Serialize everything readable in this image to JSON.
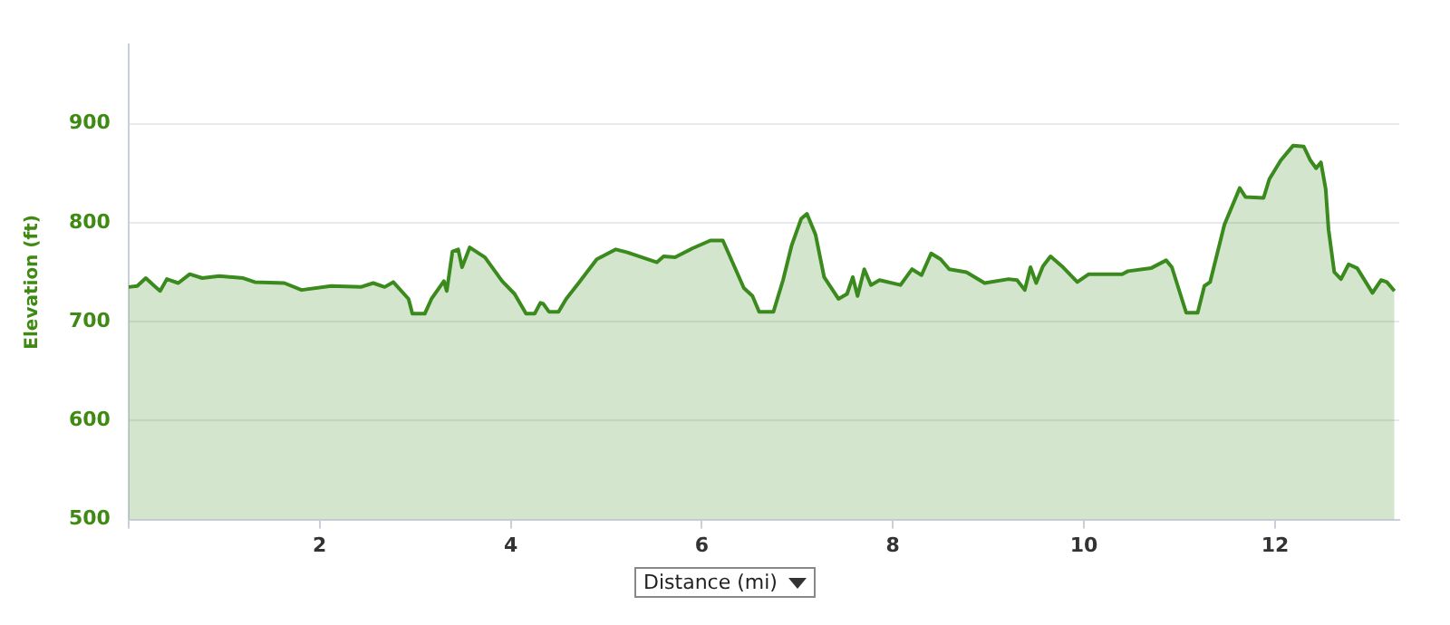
{
  "chart_data": {
    "type": "area",
    "xlabel": "Distance (mi)",
    "ylabel": "Elevation (ft)",
    "x": [
      0,
      0.09,
      0.18,
      0.27,
      0.33,
      0.4,
      0.52,
      0.64,
      0.77,
      0.95,
      1.2,
      1.32,
      1.63,
      1.81,
      2.12,
      2.43,
      2.56,
      2.68,
      2.77,
      2.93,
      2.97,
      3.1,
      3.17,
      3.3,
      3.33,
      3.39,
      3.45,
      3.49,
      3.57,
      3.73,
      3.91,
      4.04,
      4.16,
      4.25,
      4.31,
      4.34,
      4.4,
      4.5,
      4.58,
      4.71,
      4.9,
      5.1,
      5.22,
      5.53,
      5.6,
      5.72,
      5.9,
      6.09,
      6.22,
      6.28,
      6.44,
      6.53,
      6.6,
      6.75,
      6.85,
      6.94,
      7.04,
      7.1,
      7.19,
      7.28,
      7.43,
      7.52,
      7.58,
      7.63,
      7.7,
      7.77,
      7.86,
      8.08,
      8.2,
      8.3,
      8.4,
      8.5,
      8.59,
      8.77,
      8.96,
      9.21,
      9.3,
      9.38,
      9.44,
      9.5,
      9.57,
      9.65,
      9.77,
      9.93,
      10.05,
      10.4,
      10.46,
      10.7,
      10.86,
      10.92,
      11.07,
      11.19,
      11.26,
      11.32,
      11.47,
      11.63,
      11.69,
      11.88,
      11.94,
      12.06,
      12.19,
      12.3,
      12.37,
      12.43,
      12.48,
      12.53,
      12.56,
      12.62,
      12.69,
      12.77,
      12.86,
      13.02,
      13.11,
      13.17,
      13.25
    ],
    "series": [
      {
        "color": "#3a8a1e",
        "values": [
          735,
          736,
          744,
          736,
          731,
          743,
          739,
          748,
          744,
          746,
          744,
          740,
          739,
          732,
          736,
          735,
          739,
          735,
          740,
          723,
          708,
          708,
          723,
          741,
          731,
          771,
          773,
          755,
          775,
          765,
          741,
          728,
          708,
          708,
          719,
          718,
          710,
          710,
          723,
          739,
          763,
          773,
          770,
          760,
          766,
          765,
          774,
          782,
          782,
          769,
          734,
          726,
          710,
          710,
          742,
          777,
          804,
          809,
          788,
          745,
          723,
          728,
          745,
          726,
          753,
          737,
          742,
          737,
          753,
          747,
          769,
          763,
          753,
          750,
          739,
          743,
          742,
          732,
          755,
          739,
          756,
          766,
          756,
          740,
          748,
          748,
          751,
          754,
          762,
          755,
          709,
          709,
          736,
          740,
          798,
          835,
          826,
          825,
          844,
          863,
          878,
          877,
          863,
          855,
          861,
          834,
          793,
          750,
          743,
          758,
          754,
          729,
          742,
          740,
          731
        ]
      }
    ],
    "xlim": [
      0,
      13.3
    ],
    "xticks": [
      {
        "value": 0,
        "label": null
      },
      2,
      4,
      6,
      8,
      10,
      12
    ],
    "ylim": [
      500,
      980
    ],
    "yticks": [
      500,
      600,
      700,
      800,
      900
    ],
    "grid": "y",
    "legend": false,
    "marker": "none",
    "line_style": "solid"
  }
}
